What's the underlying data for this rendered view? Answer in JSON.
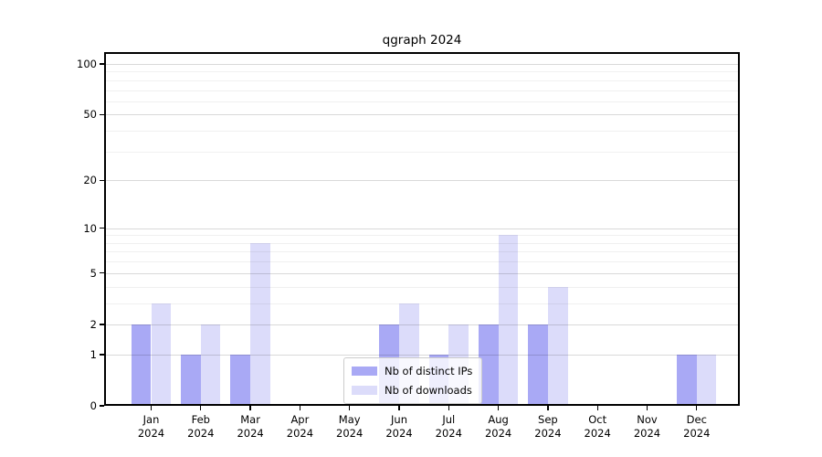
{
  "title": "qgraph 2024",
  "chart_data": {
    "type": "bar",
    "title": "qgraph 2024",
    "xlabel": "",
    "ylabel": "",
    "categories": [
      "Jan",
      "Feb",
      "Mar",
      "Apr",
      "May",
      "Jun",
      "Jul",
      "Aug",
      "Sep",
      "Oct",
      "Nov",
      "Dec"
    ],
    "category_year": "2024",
    "series": [
      {
        "name": "Nb of distinct IPs",
        "color": "#a9a9f5",
        "values": [
          2,
          1,
          1,
          0,
          0,
          2,
          1,
          2,
          2,
          0,
          0,
          1
        ]
      },
      {
        "name": "Nb of downloads",
        "color": "#dcdcfa",
        "values": [
          3,
          2,
          8,
          0,
          0,
          3,
          2,
          9,
          4,
          0,
          0,
          1
        ]
      }
    ],
    "yscale": "log1p",
    "ylim": [
      0,
      100
    ],
    "y_major_ticks": [
      0,
      1,
      2,
      5,
      10,
      20,
      50,
      100
    ],
    "y_minor_gridlines": [
      3,
      4,
      6,
      7,
      8,
      9,
      30,
      40,
      60,
      70,
      80,
      90
    ],
    "grid": true,
    "legend_position": "lower center"
  }
}
